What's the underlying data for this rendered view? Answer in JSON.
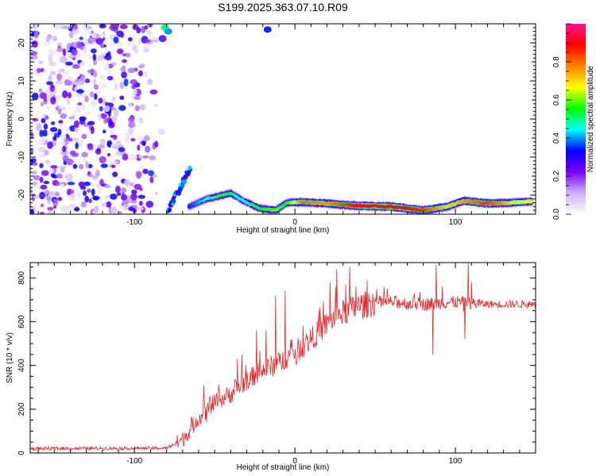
{
  "figure_title": "S199.2025.363.07.10.R09",
  "chart_data": [
    {
      "type": "heatmap",
      "xlabel": "Height of straight line (km)",
      "ylabel": "Frequency (Hz)",
      "xlim": [
        -165,
        150
      ],
      "ylim": [
        -25,
        25
      ],
      "x_ticks": [
        -100,
        0,
        100
      ],
      "y_ticks": [
        -20,
        -10,
        0,
        10,
        20
      ],
      "noise_region_x": [
        -165,
        -80
      ],
      "signal_track": [
        {
          "x": -80,
          "f": 24,
          "a": 0.45
        },
        {
          "x": -76,
          "f": 5,
          "a": 0.15
        },
        {
          "x": -74,
          "f": -14,
          "a": 0.3
        },
        {
          "x": -70,
          "f": -20,
          "a": 0.4
        },
        {
          "x": -66,
          "f": -23,
          "a": 0.35
        },
        {
          "x": -55,
          "f": -21,
          "a": 0.45
        },
        {
          "x": -45,
          "f": -20,
          "a": 0.55
        },
        {
          "x": -40,
          "f": -19.5,
          "a": 0.5
        },
        {
          "x": -32,
          "f": -21.5,
          "a": 0.45
        },
        {
          "x": -22,
          "f": -23.5,
          "a": 0.55
        },
        {
          "x": -12,
          "f": -24,
          "a": 0.6
        },
        {
          "x": -5,
          "f": -22,
          "a": 0.55
        },
        {
          "x": 5,
          "f": -21.8,
          "a": 0.8
        },
        {
          "x": 20,
          "f": -22.2,
          "a": 0.75
        },
        {
          "x": 40,
          "f": -22.8,
          "a": 0.9
        },
        {
          "x": 60,
          "f": -23,
          "a": 0.92
        },
        {
          "x": 80,
          "f": -24,
          "a": 0.85
        },
        {
          "x": 95,
          "f": -23,
          "a": 0.7
        },
        {
          "x": 105,
          "f": -21.5,
          "a": 0.75
        },
        {
          "x": 120,
          "f": -22.2,
          "a": 0.85
        },
        {
          "x": 135,
          "f": -22,
          "a": 0.7
        },
        {
          "x": 148,
          "f": -21.6,
          "a": 0.65
        }
      ],
      "colorbar": {
        "label": "Normalized spectral amplitude",
        "range": [
          0,
          1
        ],
        "ticks": [
          "0.0",
          "0.2",
          "0.4",
          "0.6",
          "0.8"
        ],
        "stops": [
          "#ffffff",
          "#c9b3f5",
          "#7b00ff",
          "#0000ff",
          "#00ffff",
          "#00ff00",
          "#ffff00",
          "#ff8000",
          "#ff0000",
          "#ff1493"
        ]
      }
    },
    {
      "type": "line",
      "xlabel": "Height of straight line (km)",
      "ylabel": "SNR (10 * v/v)",
      "xlim": [
        -165,
        150
      ],
      "ylim": [
        0,
        870
      ],
      "x_ticks": [
        -100,
        0,
        100
      ],
      "y_ticks": [
        0,
        200,
        400,
        600,
        800
      ],
      "color": "#e8282d",
      "trend": [
        {
          "x": -165,
          "y": 20
        },
        {
          "x": -80,
          "y": 22
        },
        {
          "x": -70,
          "y": 60
        },
        {
          "x": -60,
          "y": 160
        },
        {
          "x": -50,
          "y": 230
        },
        {
          "x": -40,
          "y": 270
        },
        {
          "x": -30,
          "y": 330
        },
        {
          "x": -20,
          "y": 380
        },
        {
          "x": -10,
          "y": 410
        },
        {
          "x": 0,
          "y": 460
        },
        {
          "x": 10,
          "y": 520
        },
        {
          "x": 20,
          "y": 590
        },
        {
          "x": 30,
          "y": 640
        },
        {
          "x": 40,
          "y": 670
        },
        {
          "x": 50,
          "y": 690
        },
        {
          "x": 60,
          "y": 690
        },
        {
          "x": 80,
          "y": 680
        },
        {
          "x": 100,
          "y": 690
        },
        {
          "x": 120,
          "y": 680
        },
        {
          "x": 150,
          "y": 680
        }
      ],
      "spikes": [
        {
          "x": -57,
          "y": 310
        },
        {
          "x": -55,
          "y": 140
        },
        {
          "x": -53,
          "y": 260
        },
        {
          "x": -36,
          "y": 430
        },
        {
          "x": -33,
          "y": 450
        },
        {
          "x": -24,
          "y": 560
        },
        {
          "x": -18,
          "y": 560
        },
        {
          "x": -12,
          "y": 720
        },
        {
          "x": -6,
          "y": 740
        },
        {
          "x": 5,
          "y": 580
        },
        {
          "x": 15,
          "y": 650
        },
        {
          "x": 22,
          "y": 780
        },
        {
          "x": 26,
          "y": 840
        },
        {
          "x": 34,
          "y": 850
        },
        {
          "x": 38,
          "y": 760
        },
        {
          "x": 45,
          "y": 790
        },
        {
          "x": 86,
          "y": 450
        },
        {
          "x": 88,
          "y": 860
        },
        {
          "x": 92,
          "y": 760
        },
        {
          "x": 106,
          "y": 520
        },
        {
          "x": 108,
          "y": 870
        },
        {
          "x": 110,
          "y": 780
        }
      ]
    }
  ]
}
